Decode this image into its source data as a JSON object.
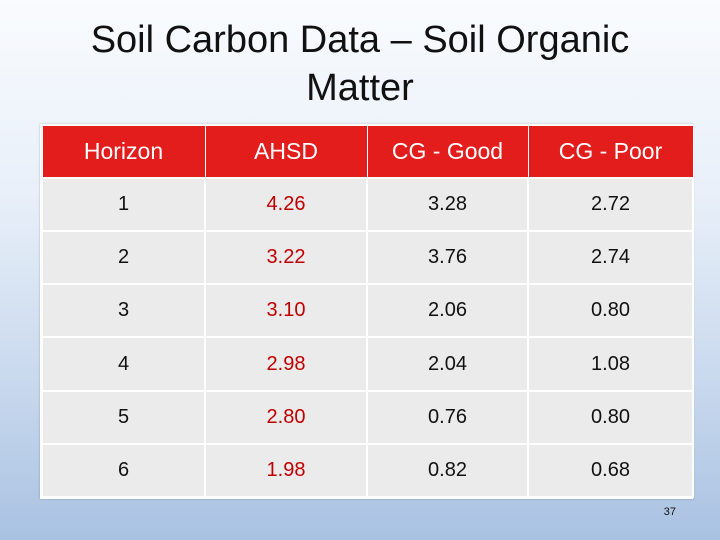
{
  "title": {
    "line1": "Soil Carbon Data – Soil Organic",
    "line2": "Matter"
  },
  "table": {
    "headers": [
      "Horizon",
      "AHSD",
      "CG - Good",
      "CG - Poor"
    ],
    "rows": [
      [
        "1",
        "4.26",
        "3.28",
        "2.72"
      ],
      [
        "2",
        "3.22",
        "3.76",
        "2.74"
      ],
      [
        "3",
        "3.10",
        "2.06",
        "0.80"
      ],
      [
        "4",
        "2.98",
        "2.04",
        "1.08"
      ],
      [
        "5",
        "2.80",
        "0.76",
        "0.80"
      ],
      [
        "6",
        "1.98",
        "0.82",
        "0.68"
      ]
    ]
  },
  "colors": {
    "header_bg": "#e31c1c",
    "ahsd_text": "#c00000",
    "cell_bg": "#ebebeb"
  },
  "page_number": "37"
}
